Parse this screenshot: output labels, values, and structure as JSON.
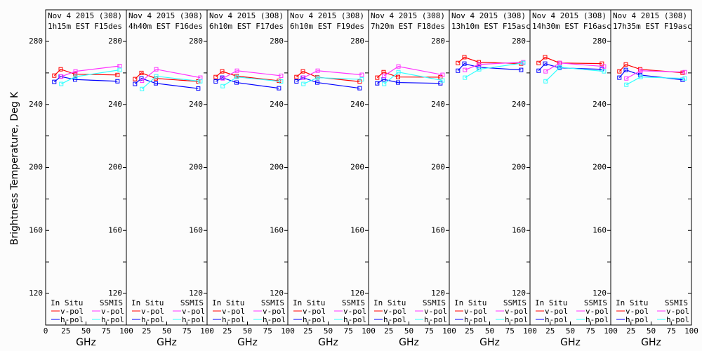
{
  "chart_data": {
    "type": "line",
    "ylabel": "Brightness Temperature, Deg K",
    "xlabel": "GHz",
    "xlim": [
      0,
      100
    ],
    "ylim": [
      110,
      295
    ],
    "x_ticks": [
      "0",
      "25",
      "50",
      "75",
      "100"
    ],
    "y_ticks": [
      "120",
      "160",
      "200",
      "240",
      "280"
    ],
    "legend": {
      "insitu_title": "In Situ",
      "ssmis_title": "SSMIS",
      "vpol": "v-pol",
      "hpol": "h-pol"
    },
    "colors": {
      "insitu_v": "#ff0000",
      "insitu_h": "#0000ff",
      "ssmis_v": "#ff33ff",
      "ssmis_h": "#33ffff"
    },
    "insitu_freqs": [
      10.7,
      18.7,
      36.5,
      89
    ],
    "ssmis_freqs": [
      19.35,
      37,
      91.65
    ],
    "panels": [
      {
        "title1": "Nov 4 2015 (308)",
        "title2": "1h15m EST F15des",
        "insitu_v": [
          258.3,
          262.3,
          259.2,
          258.7
        ],
        "insitu_h": [
          254.3,
          257.7,
          255.8,
          254.7
        ],
        "ssmis_v": [
          257.7,
          261.0,
          264.4
        ],
        "ssmis_h": [
          253.0,
          257.6,
          261.9
        ]
      },
      {
        "title1": "Nov 4 2015 (308)",
        "title2": "4h40m EST F16des",
        "insitu_v": [
          256.1,
          260.0,
          256.5,
          254.6
        ],
        "insitu_h": [
          253.0,
          256.5,
          253.4,
          250.1
        ],
        "ssmis_v": [
          255.0,
          262.3,
          257.0
        ],
        "ssmis_h": [
          249.8,
          257.9,
          254.7
        ]
      },
      {
        "title1": "Nov 4 2015 (308)",
        "title2": "6h10m EST F17des",
        "insitu_v": [
          257.4,
          261.0,
          258.0,
          255.0
        ],
        "insitu_h": [
          254.6,
          257.0,
          253.9,
          250.3
        ],
        "ssmis_v": [
          256.5,
          261.4,
          258.2
        ],
        "ssmis_h": [
          251.6,
          257.4,
          254.6
        ]
      },
      {
        "title1": "Nov 4 2015 (308)",
        "title2": "6h10m EST F19des",
        "insitu_v": [
          257.4,
          261.0,
          257.3,
          254.5
        ],
        "insitu_h": [
          254.6,
          257.0,
          253.9,
          250.3
        ],
        "ssmis_v": [
          257.0,
          261.4,
          258.8
        ],
        "ssmis_h": [
          253.0,
          257.0,
          255.9
        ]
      },
      {
        "title1": "Nov 4 2015 (308)",
        "title2": "7h20m EST F18des",
        "insitu_v": [
          257.0,
          260.5,
          257.4,
          257.3
        ],
        "insitu_h": [
          253.4,
          255.9,
          253.9,
          253.4
        ],
        "ssmis_v": [
          258.2,
          264.1,
          258.8
        ],
        "ssmis_h": [
          253.0,
          260.5,
          255.2
        ]
      },
      {
        "title1": "Nov 4 2015 (308)",
        "title2": "13h10m EST F15asc",
        "insitu_v": [
          266.3,
          270.0,
          266.8,
          265.9
        ],
        "insitu_h": [
          261.4,
          265.9,
          263.6,
          261.9
        ],
        "ssmis_v": [
          261.9,
          265.4,
          266.8
        ],
        "ssmis_h": [
          257.0,
          262.3,
          266.3
        ]
      },
      {
        "title1": "Nov 4 2015 (308)",
        "title2": "14h30m EST F16asc",
        "insitu_v": [
          266.3,
          270.0,
          266.3,
          265.9
        ],
        "insitu_h": [
          261.4,
          265.9,
          263.2,
          262.3
        ],
        "ssmis_v": [
          261.0,
          266.3,
          264.1
        ],
        "ssmis_h": [
          254.7,
          263.6,
          261.0
        ]
      },
      {
        "title1": "Nov 4 2015 (308)",
        "title2": "17h35m EST F19asc",
        "insitu_v": [
          261.0,
          265.4,
          262.3,
          260.1
        ],
        "insitu_h": [
          257.0,
          261.9,
          258.7,
          255.6
        ],
        "ssmis_v": [
          256.5,
          261.4,
          260.5
        ],
        "ssmis_h": [
          252.5,
          257.4,
          256.5
        ]
      }
    ]
  }
}
